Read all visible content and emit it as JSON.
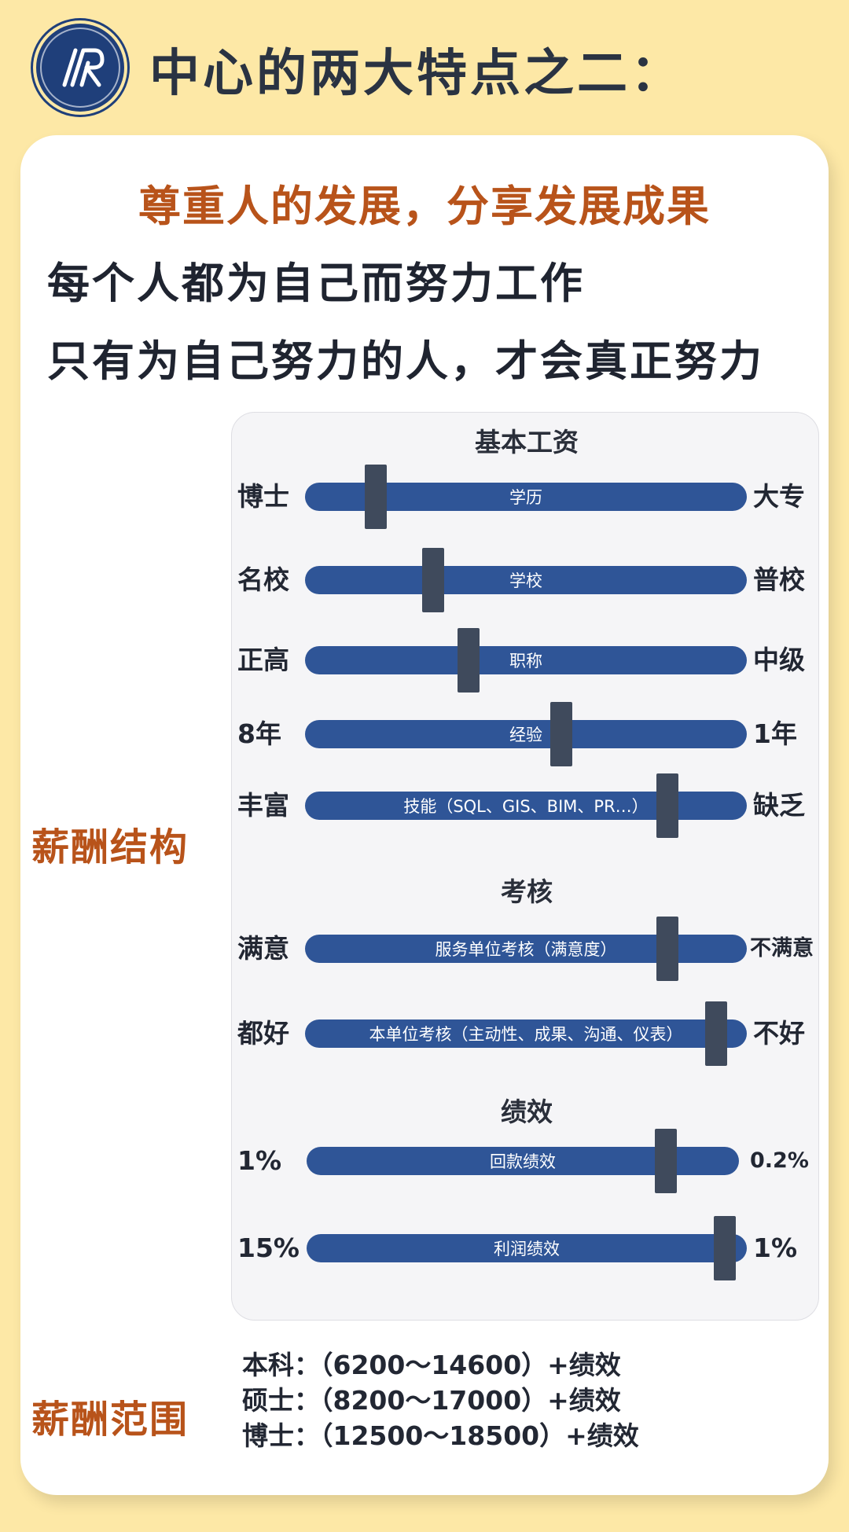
{
  "header": {
    "title": "中心的两大特点之二：",
    "logo_icon": "center-logo-icon"
  },
  "intro": {
    "subtitle": "尊重人的发展，分享发展成果",
    "line1": "每个人都为自己而努力工作",
    "line2": "只有为自己努力的人，才会真正努力"
  },
  "structure": {
    "side_label": "薪酬结构",
    "sections": [
      {
        "title": "基本工资"
      },
      {
        "title": "考核"
      },
      {
        "title": "绩效"
      }
    ],
    "rows": [
      {
        "left": "博士",
        "label": "学历",
        "right": "大专",
        "level": 0.16
      },
      {
        "left": "名校",
        "label": "学校",
        "right": "普校",
        "level": 0.29
      },
      {
        "left": "正高",
        "label": "职称",
        "right": "中级",
        "level": 0.37
      },
      {
        "left": "8年",
        "label": "经验",
        "right": "1年",
        "level": 0.58
      },
      {
        "left": "丰富",
        "label": "技能（SQL、GIS、BIM、PR…）",
        "right": "缺乏",
        "level": 0.82
      },
      {
        "left": "满意",
        "label": "服务单位考核（满意度）",
        "right": "不满意",
        "level": 0.82
      },
      {
        "left": "都好",
        "label": "本单位考核（主动性、成果、沟通、仪表）",
        "right": "不好",
        "level": 0.93
      },
      {
        "left": "1%",
        "label": "回款绩效",
        "right": "0.2%",
        "level": 0.83
      },
      {
        "left": "15%",
        "label": "利润绩效",
        "right": "1%",
        "level": 0.95
      }
    ]
  },
  "salary": {
    "side_label": "薪酬范围",
    "lines": [
      "本科：（6200～14600）+绩效",
      "硕士：（8200～17000）+绩效",
      "博士：（12500～18500）+绩效"
    ]
  },
  "colors": {
    "background": "#fde8a6",
    "accent": "#b8531a",
    "bar": "#2f5597",
    "handle": "#3f4a5c"
  }
}
